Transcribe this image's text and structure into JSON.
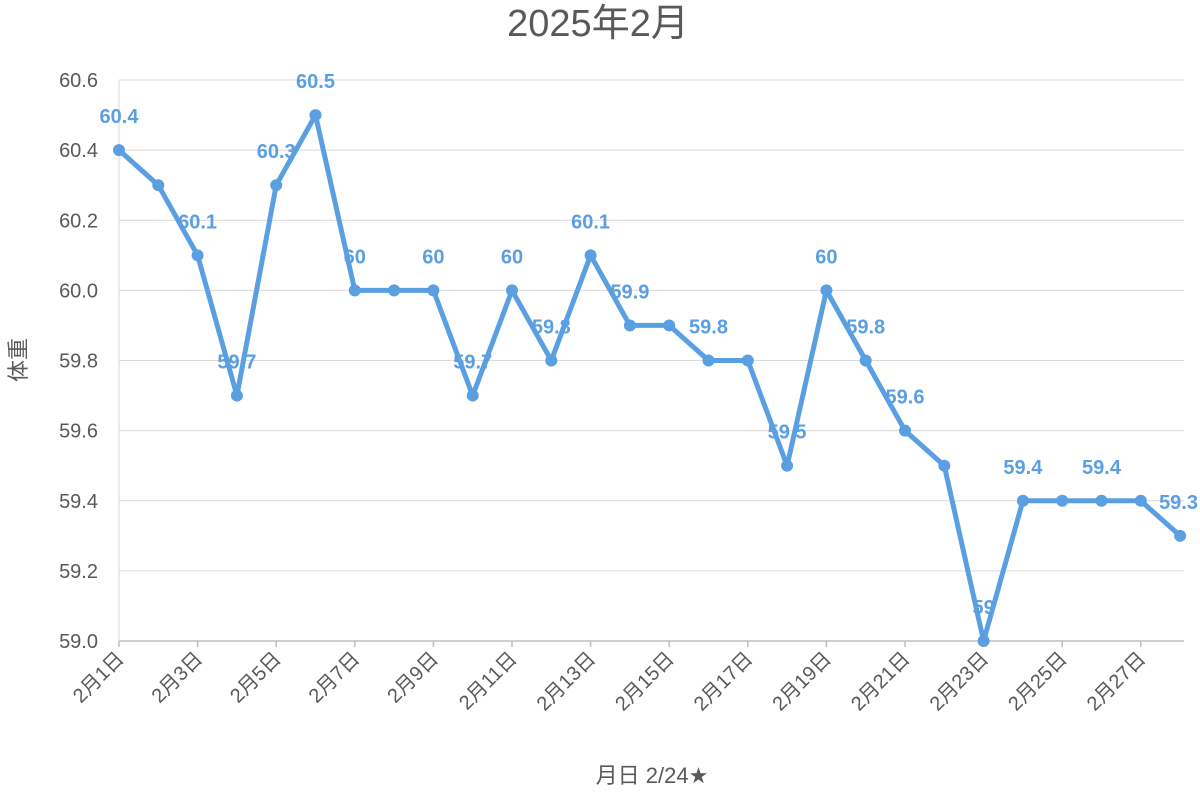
{
  "chart_data": {
    "type": "line",
    "title": "2025年2月",
    "xlabel": "月日 2/24★",
    "ylabel": "体重",
    "ylim": [
      59.0,
      60.6
    ],
    "yticks": [
      "59.0",
      "59.2",
      "59.4",
      "59.6",
      "59.8",
      "60.0",
      "60.2",
      "60.4",
      "60.6"
    ],
    "x_tick_labels": [
      "2月1日",
      "2月3日",
      "2月5日",
      "2月7日",
      "2月9日",
      "2月11日",
      "2月13日",
      "2月15日",
      "2月17日",
      "2月19日",
      "2月21日",
      "2月23日",
      "2月25日",
      "2月27日"
    ],
    "grid": true,
    "legend": "none",
    "categories": [
      "2月1日",
      "2月2日",
      "2月3日",
      "2月4日",
      "2月5日",
      "2月6日",
      "2月7日",
      "2月8日",
      "2月9日",
      "2月10日",
      "2月11日",
      "2月12日",
      "2月13日",
      "2月14日",
      "2月15日",
      "2月16日",
      "2月17日",
      "2月18日",
      "2月19日",
      "2月20日",
      "2月21日",
      "2月22日",
      "2月23日",
      "2月24日",
      "2月25日",
      "2月26日",
      "2月27日",
      "2月28日"
    ],
    "series": [
      {
        "color": "#5b9fe3",
        "values": [
          60.4,
          60.3,
          60.1,
          59.7,
          60.3,
          60.5,
          60.0,
          60.0,
          60.0,
          59.7,
          60.0,
          59.8,
          60.1,
          59.9,
          59.9,
          59.8,
          59.8,
          59.5,
          60.0,
          59.8,
          59.6,
          59.5,
          59.0,
          59.4,
          59.4,
          59.4,
          59.4,
          59.3
        ],
        "data_labels": [
          {
            "index": 0,
            "text": "60.4"
          },
          {
            "index": 2,
            "text": "60.1"
          },
          {
            "index": 3,
            "text": "59.7"
          },
          {
            "index": 4,
            "text": "60.3"
          },
          {
            "index": 5,
            "text": "60.5"
          },
          {
            "index": 6,
            "text": "60"
          },
          {
            "index": 8,
            "text": "60"
          },
          {
            "index": 9,
            "text": "59.7"
          },
          {
            "index": 10,
            "text": "60"
          },
          {
            "index": 11,
            "text": "59.8"
          },
          {
            "index": 12,
            "text": "60.1"
          },
          {
            "index": 13,
            "text": "59.9"
          },
          {
            "index": 15,
            "text": "59.8"
          },
          {
            "index": 17,
            "text": "59.5"
          },
          {
            "index": 18,
            "text": "60"
          },
          {
            "index": 19,
            "text": "59.8"
          },
          {
            "index": 20,
            "text": "59.6"
          },
          {
            "index": 22,
            "text": "59"
          },
          {
            "index": 23,
            "text": "59.4"
          },
          {
            "index": 25,
            "text": "59.4"
          },
          {
            "index": 27,
            "text": "59.3"
          }
        ]
      }
    ]
  }
}
